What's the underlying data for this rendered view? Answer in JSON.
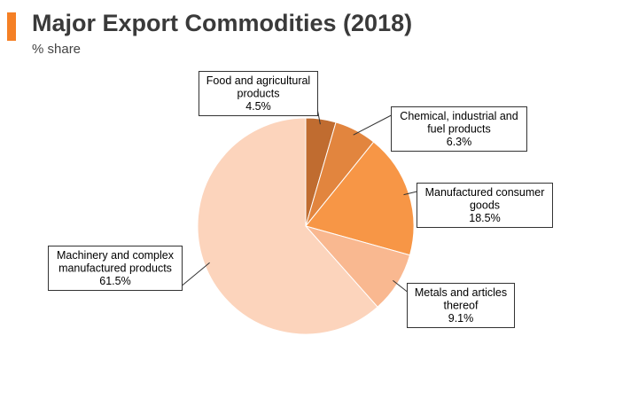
{
  "header": {
    "title": "Major Export Commodities (2018)",
    "subtitle": "% share"
  },
  "colors": {
    "accent": "#f58025",
    "callout_border": "#333333",
    "slice_border": "#ffffff"
  },
  "chart_data": {
    "type": "pie",
    "title": "Major Export Commodities (2018)",
    "subtitle": "% share",
    "unit": "%",
    "start_angle_deg": 0,
    "direction": "clockwise",
    "slices": [
      {
        "label_lines": [
          "Food and agricultural",
          "products"
        ],
        "value": 4.5,
        "value_label": "4.5%",
        "color": "#c06c30"
      },
      {
        "label_lines": [
          "Chemical, industrial and",
          "fuel products"
        ],
        "value": 6.3,
        "value_label": "6.3%",
        "color": "#e2853e"
      },
      {
        "label_lines": [
          "Manufactured consumer",
          "goods"
        ],
        "value": 18.5,
        "value_label": "18.5%",
        "color": "#f79646"
      },
      {
        "label_lines": [
          "Metals and articles",
          "thereof"
        ],
        "value": 9.1,
        "value_label": "9.1%",
        "color": "#f9b890"
      },
      {
        "label_lines": [
          "Machinery and complex",
          "manufactured products"
        ],
        "value": 61.5,
        "value_label": "61.5%",
        "color": "#fcd4bc"
      }
    ]
  }
}
